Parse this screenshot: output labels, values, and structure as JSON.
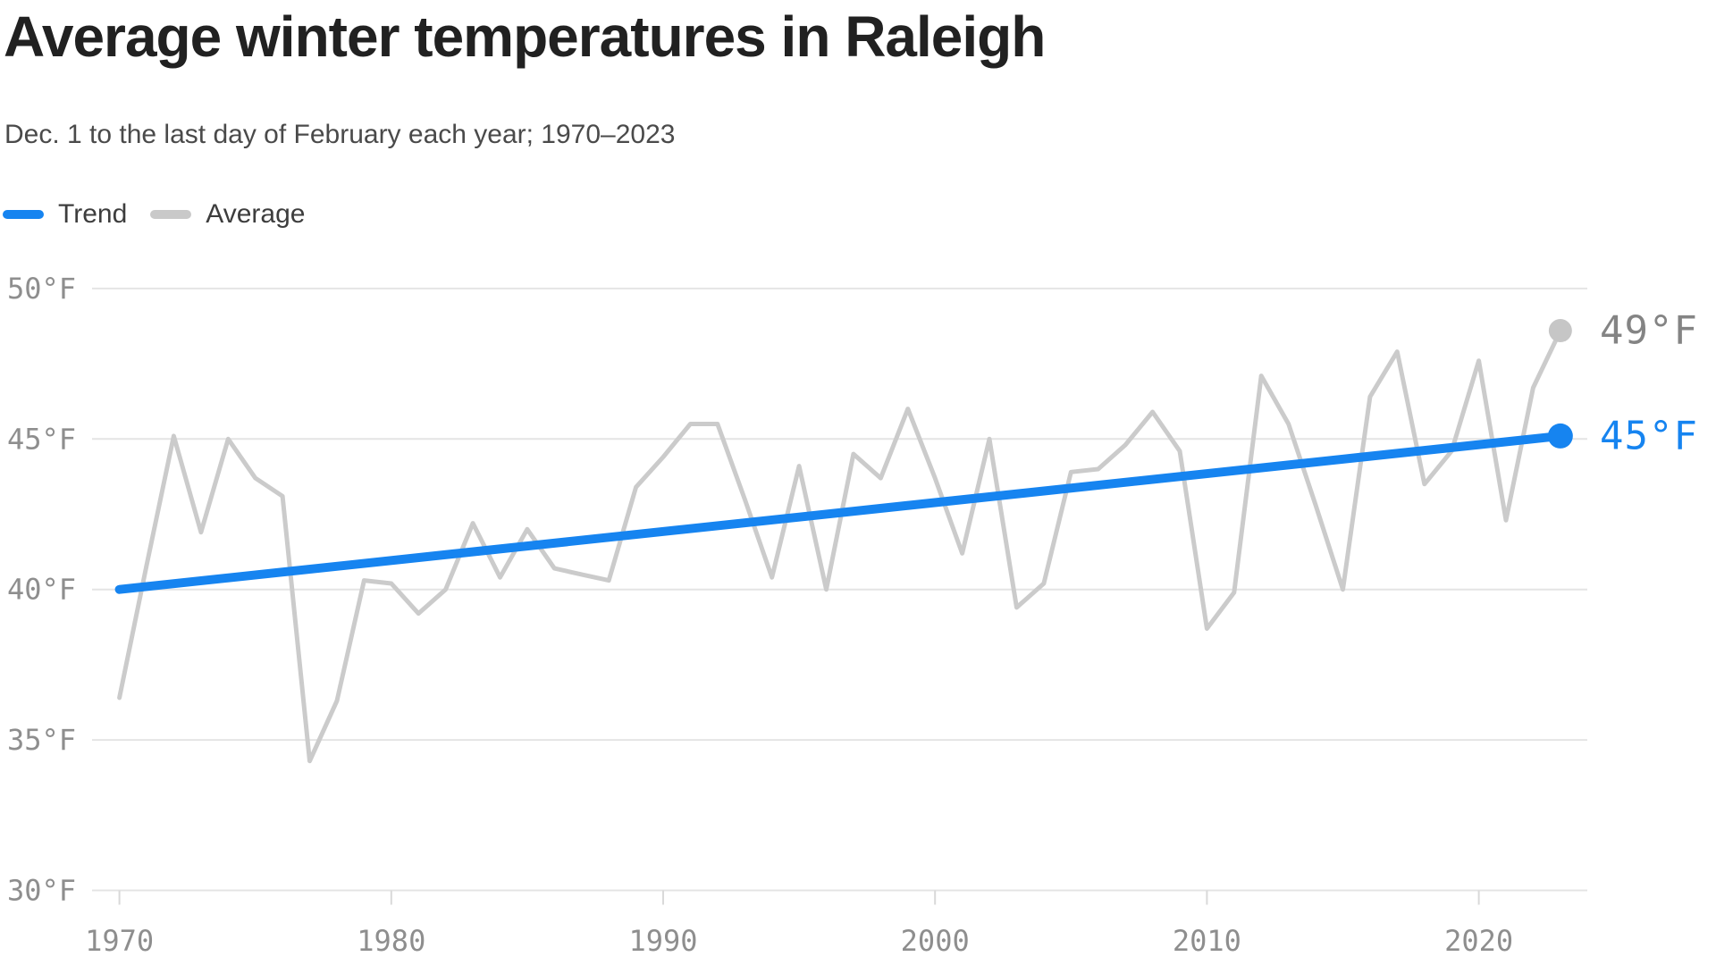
{
  "header": {
    "title": "Average winter temperatures in Raleigh",
    "subtitle": "Dec. 1 to the last day of February each year; 1970–2023"
  },
  "legend": [
    {
      "label": "Trend",
      "color": "#1684f0"
    },
    {
      "label": "Average",
      "color": "#c9c9c9"
    }
  ],
  "colors": {
    "trend_blue": "#1684f0",
    "average_gray": "#cbcbcb",
    "end_dot_gray": "#c6c6c6",
    "gridline": "#e4e4e4",
    "tick": "#d9d9d9",
    "axis_text": "#8e8e8e",
    "end_label_gray": "#848484"
  },
  "chart_data": {
    "type": "line",
    "title": "Average winter temperatures in Raleigh",
    "subtitle": "Dec. 1 to the last day of February each year; 1970–2023",
    "grid": true,
    "legend_position": "top-left",
    "xlabel": "",
    "ylabel": "",
    "xlim": [
      1969,
      2024
    ],
    "ylim": [
      30,
      50
    ],
    "yaxis": {
      "ticks": [
        50,
        45,
        40,
        35,
        30
      ],
      "tick_labels": [
        "50°F",
        "45°F",
        "40°F",
        "35°F",
        "30°F"
      ]
    },
    "xaxis": {
      "ticks": [
        1970,
        1980,
        1990,
        2000,
        2010,
        2020
      ],
      "tick_labels": [
        "1970",
        "1980",
        "1990",
        "2000",
        "2010",
        "2020"
      ]
    },
    "x": [
      1970,
      1971,
      1972,
      1973,
      1974,
      1975,
      1976,
      1977,
      1978,
      1979,
      1980,
      1981,
      1982,
      1983,
      1984,
      1985,
      1986,
      1987,
      1988,
      1989,
      1990,
      1991,
      1992,
      1993,
      1994,
      1995,
      1996,
      1997,
      1998,
      1999,
      2000,
      2001,
      2002,
      2003,
      2004,
      2005,
      2006,
      2007,
      2008,
      2009,
      2010,
      2011,
      2012,
      2013,
      2014,
      2015,
      2016,
      2017,
      2018,
      2019,
      2020,
      2021,
      2022,
      2023
    ],
    "series": [
      {
        "name": "Average",
        "values": [
          36.4,
          40.8,
          45.1,
          41.9,
          45.0,
          43.7,
          43.1,
          34.3,
          36.3,
          40.3,
          40.2,
          39.2,
          40.0,
          42.2,
          40.4,
          42.0,
          40.7,
          40.5,
          40.3,
          43.4,
          44.4,
          45.5,
          45.5,
          43.0,
          40.4,
          44.1,
          40.0,
          44.5,
          43.7,
          46.0,
          43.7,
          41.2,
          45.0,
          39.4,
          40.2,
          43.9,
          44.0,
          44.8,
          45.9,
          44.6,
          38.7,
          39.9,
          47.1,
          45.5,
          42.8,
          40.0,
          46.4,
          47.9,
          43.5,
          44.6,
          47.6,
          42.3,
          46.7,
          48.6
        ]
      },
      {
        "name": "Trend",
        "x": [
          1970,
          2023
        ],
        "values": [
          40.0,
          45.1
        ]
      }
    ],
    "end_labels": [
      {
        "series": "Average",
        "text": "49°F"
      },
      {
        "series": "Trend",
        "text": "45°F"
      }
    ]
  }
}
